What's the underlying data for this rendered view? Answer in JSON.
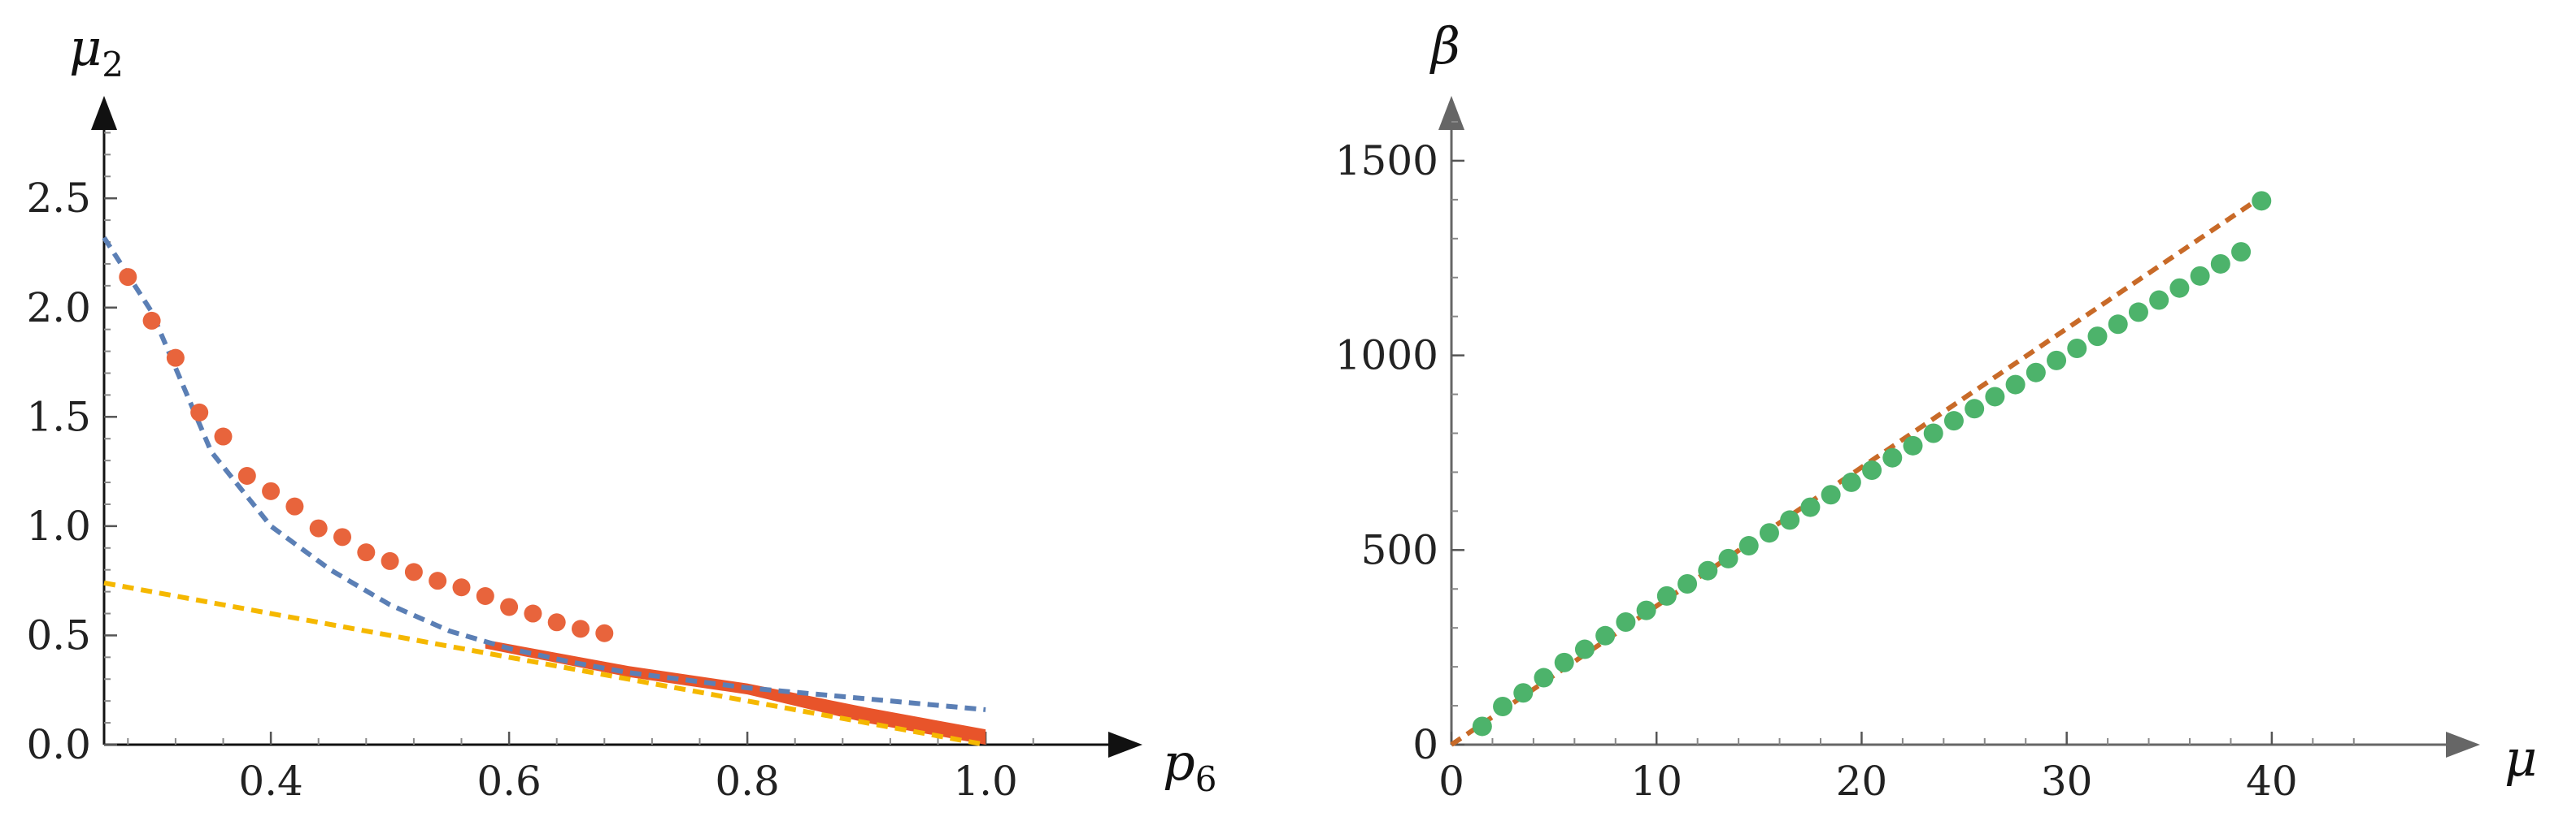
{
  "chart_data": [
    {
      "type": "line",
      "title": "",
      "xlabel": "p",
      "xlabel_sub": "6",
      "ylabel": "μ",
      "ylabel_sub": "2",
      "xlim": [
        0.26,
        1.06
      ],
      "ylim": [
        0.0,
        2.85
      ],
      "x_ticks": [
        0.4,
        0.6,
        0.8,
        1.0
      ],
      "x_tick_labels": [
        "0.4",
        "0.6",
        "0.8",
        "1.0"
      ],
      "y_ticks": [
        0.0,
        0.5,
        1.0,
        1.5,
        2.0,
        2.5
      ],
      "y_tick_labels": [
        "0.0",
        "0.5",
        "1.0",
        "1.5",
        "2.0",
        "2.5"
      ],
      "grid": false,
      "colors": {
        "points": "#e8643c",
        "band": "#e8542a",
        "blue_dashed": "#5b7fb5",
        "yellow_dashed": "#f5b800",
        "axis": "#111111"
      },
      "series": [
        {
          "style": "points",
          "x": [
            0.28,
            0.3,
            0.32,
            0.34,
            0.36,
            0.38,
            0.4,
            0.42,
            0.44,
            0.46,
            0.48,
            0.5,
            0.52,
            0.54,
            0.56,
            0.58,
            0.6,
            0.62,
            0.64,
            0.66,
            0.68
          ],
          "y": [
            2.14,
            1.94,
            1.77,
            1.52,
            1.41,
            1.23,
            1.16,
            1.09,
            0.99,
            0.95,
            0.88,
            0.84,
            0.79,
            0.75,
            0.72,
            0.68,
            0.63,
            0.6,
            0.56,
            0.53,
            0.51
          ]
        },
        {
          "style": "band",
          "x": [
            0.58,
            0.7,
            0.8,
            0.9,
            1.0
          ],
          "y_upper": [
            0.48,
            0.36,
            0.28,
            0.17,
            0.07
          ],
          "y_lower": [
            0.44,
            0.31,
            0.23,
            0.1,
            0.0
          ]
        },
        {
          "style": "dashed",
          "x": [
            0.26,
            0.3,
            0.35,
            0.4,
            0.45,
            0.5,
            0.55,
            0.6,
            0.65,
            0.7,
            0.8,
            0.9,
            1.0
          ],
          "y": [
            2.32,
            1.98,
            1.34,
            1.0,
            0.8,
            0.64,
            0.52,
            0.44,
            0.38,
            0.33,
            0.26,
            0.21,
            0.16
          ]
        },
        {
          "style": "dashed",
          "x": [
            0.26,
            1.0
          ],
          "y": [
            0.74,
            0.0
          ]
        }
      ]
    },
    {
      "type": "scatter",
      "title": "",
      "xlabel": "μ",
      "ylabel": "β",
      "xlim": [
        0,
        45
      ],
      "ylim": [
        0,
        1600
      ],
      "x_ticks": [
        0,
        10,
        20,
        30,
        40
      ],
      "x_tick_labels": [
        "0",
        "10",
        "20",
        "30",
        "40"
      ],
      "y_ticks": [
        0,
        500,
        1000,
        1500
      ],
      "y_tick_labels": [
        "0",
        "500",
        "1000",
        "1500"
      ],
      "grid": false,
      "colors": {
        "points": "#4db36b",
        "dashed": "#c86a28",
        "axis": "#666666"
      },
      "series": [
        {
          "style": "points",
          "x": [
            1.5,
            2.5,
            3.5,
            4.5,
            5.5,
            6.5,
            7.5,
            8.5,
            9.5,
            10.5,
            11.5,
            12.5,
            13.5,
            14.5,
            15.5,
            16.5,
            17.5,
            18.5,
            19.5,
            20.5,
            21.5,
            22.5,
            23.5,
            24.5,
            25.5,
            26.5,
            27.5,
            28.5,
            29.5,
            30.5,
            31.5,
            32.5,
            33.5,
            34.5,
            35.5,
            36.5,
            37.5,
            38.5,
            39.5
          ],
          "y": [
            47,
            98,
            133,
            172,
            211,
            245,
            280,
            315,
            345,
            382,
            413,
            447,
            478,
            511,
            544,
            577,
            610,
            642,
            674,
            705,
            737,
            768,
            800,
            832,
            863,
            894,
            925,
            956,
            987,
            1018,
            1049,
            1080,
            1111,
            1142,
            1173,
            1204,
            1235,
            1266,
            1397
          ]
        },
        {
          "style": "dashed",
          "x": [
            0,
            40
          ],
          "y": [
            0,
            1425
          ]
        }
      ]
    }
  ]
}
